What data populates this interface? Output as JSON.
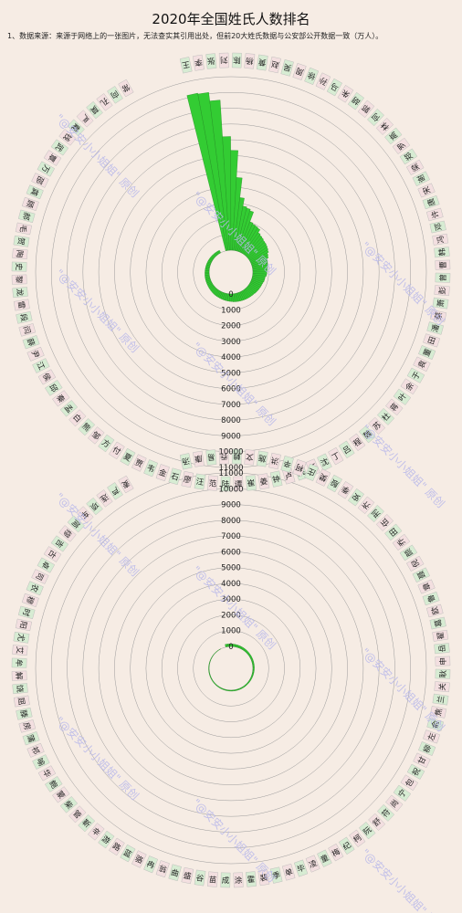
{
  "header": {
    "title": "2020年全国姓氏人数排名",
    "note": "1、数据来源：来源于网络上的一张图片，无法查实其引用出处，但前20大姓氏数据与公安部公开数据一致（万人）。"
  },
  "watermark": "\"@安安小小姐姐\" 原创",
  "colors": {
    "bar": "#33cc33",
    "bar_stroke": "#1f8a1f",
    "label_a": "#d7ecd3",
    "label_b": "#f3dfe0",
    "grid": "#9a9a9a",
    "watermark": "#b9b9ea"
  },
  "chart_data": {
    "type": "bar",
    "layout": "double radial spiral",
    "unit": "万人",
    "tick_labels": [
      "0",
      "1000",
      "2000",
      "3000",
      "4000",
      "5000",
      "6000",
      "7000",
      "8000",
      "9000",
      "10000",
      "11000"
    ],
    "ylim": [
      0,
      11000
    ],
    "categories": [
      "王",
      "李",
      "张",
      "刘",
      "陈",
      "杨",
      "黄",
      "赵",
      "吴",
      "周",
      "徐",
      "孙",
      "马",
      "朱",
      "胡",
      "郭",
      "何",
      "林",
      "高",
      "罗",
      "郑",
      "梁",
      "谢",
      "宋",
      "唐",
      "许",
      "邓",
      "冯",
      "韩",
      "曹",
      "曾",
      "彭",
      "萧",
      "蔡",
      "潘",
      "田",
      "董",
      "袁",
      "于",
      "余",
      "叶",
      "蒋",
      "杜",
      "苏",
      "魏",
      "程",
      "吕",
      "丁",
      "沈",
      "任",
      "姚",
      "卢",
      "钟",
      "姜",
      "崔",
      "谭",
      "陆",
      "范",
      "汪",
      "廖",
      "石",
      "金",
      "韦",
      "贾",
      "夏",
      "付",
      "方",
      "邹",
      "熊",
      "白",
      "孟",
      "秦",
      "邱",
      "侯",
      "江",
      "尹",
      "薛",
      "闫",
      "段",
      "雷",
      "龙",
      "黎",
      "史",
      "陶",
      "贺",
      "毛",
      "郝",
      "顾",
      "龚",
      "邵",
      "万",
      "覃",
      "武",
      "钱",
      "戴",
      "严",
      "莫",
      "孔",
      "向",
      "常",
      "汤",
      "康",
      "易",
      "乔",
      "赖",
      "文",
      "施",
      "洪",
      "辛",
      "柯",
      "庄",
      "樊",
      "殷",
      "季",
      "安",
      "齐",
      "刑",
      "伍",
      "田",
      "乔",
      "颜",
      "倪",
      "聂",
      "章",
      "鲁",
      "欧",
      "葛",
      "翟",
      "岳",
      "申",
      "耿",
      "关",
      "兰",
      "焦",
      "俞",
      "左",
      "柳",
      "甘",
      "祝",
      "包",
      "宁",
      "尚",
      "符",
      "舒",
      "阮",
      "柯",
      "纪",
      "梅",
      "童",
      "凌",
      "毕",
      "单",
      "季",
      "裴",
      "霍",
      "涂",
      "成",
      "苗",
      "谷",
      "盛",
      "曲",
      "翁",
      "冉",
      "骆",
      "蓝",
      "路",
      "游",
      "辛",
      "靳",
      "管",
      "柴",
      "蒙",
      "鲍",
      "华",
      "喻",
      "祁",
      "蒲",
      "房",
      "滕",
      "屈",
      "饶",
      "解",
      "牟",
      "艾",
      "尤",
      "阳",
      "时",
      "穆",
      "农",
      "司",
      "卓",
      "古",
      "吉",
      "缪",
      "简",
      "车",
      "项",
      "连",
      "芦",
      "麦"
    ],
    "values": [
      10150,
      10090,
      9540,
      7210,
      6330,
      4620,
      3370,
      2860,
      2780,
      2680,
      2020,
      1950,
      1920,
      1870,
      1650,
      1580,
      1540,
      1480,
      1460,
      1420,
      1370,
      1310,
      1200,
      1150,
      1040,
      1000,
      990,
      940,
      920,
      900,
      890,
      870,
      800,
      790,
      780,
      740,
      720,
      710,
      690,
      680,
      660,
      650,
      620,
      610,
      600,
      590,
      580,
      570,
      560,
      550,
      540,
      530,
      520,
      510,
      500,
      480,
      470,
      460,
      450,
      440,
      430,
      420,
      410,
      400,
      395,
      390,
      380,
      370,
      360,
      350,
      340,
      330,
      320,
      310,
      305,
      300,
      295,
      290,
      285,
      280,
      270,
      265,
      260,
      255,
      250,
      245,
      240,
      235,
      230,
      225,
      220,
      215,
      210,
      205,
      200,
      195,
      190,
      185,
      180,
      175,
      170,
      166,
      163,
      160,
      157,
      154,
      151,
      148,
      145,
      142,
      139,
      136,
      133,
      130,
      127,
      124,
      121,
      118,
      115,
      112,
      110,
      108,
      106,
      104,
      102,
      100,
      98,
      96,
      94,
      92,
      90,
      88,
      86,
      84,
      82,
      80,
      78,
      76,
      74,
      72,
      71,
      70,
      69,
      68,
      67,
      66,
      65,
      64,
      63,
      62,
      61,
      60,
      59,
      58,
      57,
      56,
      55,
      54,
      53,
      52,
      51,
      50,
      49,
      48,
      47,
      46,
      45,
      44,
      43,
      42,
      41,
      40,
      39,
      38,
      37,
      36,
      35,
      34,
      33,
      32,
      31,
      30,
      29,
      28,
      27,
      26,
      25,
      24,
      23,
      22,
      21,
      20,
      19,
      18,
      17,
      16,
      15,
      14,
      13,
      12
    ]
  }
}
